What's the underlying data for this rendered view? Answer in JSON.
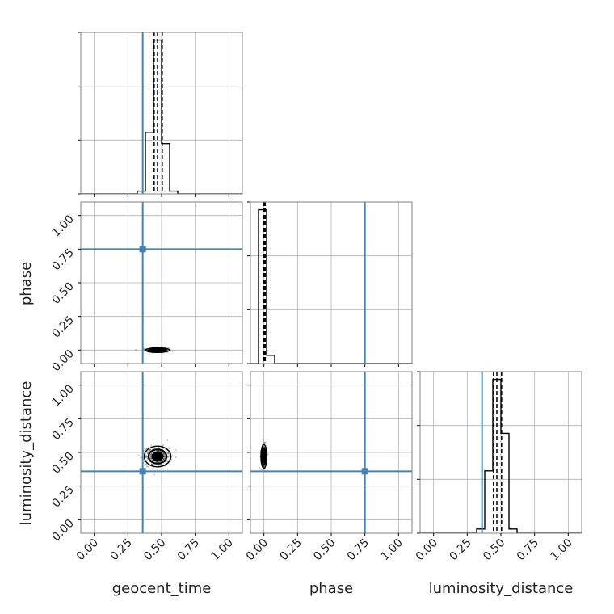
{
  "chart_data": {
    "type": "corner",
    "parameters": [
      "geocent_time",
      "phase",
      "luminosity_distance"
    ],
    "axis_labels": {
      "diag_x": [
        "geocent_time",
        "phase",
        "luminosity_distance"
      ],
      "left_y": [
        "phase",
        "luminosity_distance"
      ]
    },
    "range": [
      -0.1,
      1.1
    ],
    "ticks": [
      0.0,
      0.25,
      0.5,
      0.75,
      1.0
    ],
    "tick_labels": [
      "0.00",
      "0.25",
      "0.50",
      "0.75",
      "1.00"
    ],
    "grid": true,
    "truths": {
      "geocent_time": 0.36,
      "phase": 0.75,
      "luminosity_distance": 0.36
    },
    "truth_color": "#4682b4",
    "histograms": {
      "bin_edges": [
        -0.1,
        -0.04,
        0.02,
        0.08,
        0.14,
        0.2,
        0.26,
        0.32,
        0.38,
        0.44,
        0.5,
        0.56,
        0.62,
        0.68,
        0.74,
        0.8,
        0.86,
        0.92,
        0.98,
        1.04,
        1.1
      ],
      "geocent_time": [
        0,
        0,
        0,
        0,
        0,
        0,
        0,
        1,
        22,
        55,
        18,
        1,
        0,
        0,
        0,
        0,
        0,
        0,
        0,
        0
      ],
      "phase": [
        0,
        56,
        3,
        0,
        0,
        0,
        0,
        0,
        0,
        0,
        0,
        0,
        0,
        0,
        0,
        0,
        0,
        0,
        0,
        0
      ],
      "luminosity_distance": [
        0,
        0,
        0,
        0,
        0,
        0,
        0,
        1,
        15,
        37,
        24,
        1,
        0,
        0,
        0,
        0,
        0,
        0,
        0,
        0
      ]
    },
    "quantiles": {
      "geocent_time": [
        0.445,
        0.47,
        0.505
      ],
      "phase": [
        0.0,
        0.005,
        0.01
      ],
      "luminosity_distance": [
        0.445,
        0.47,
        0.505
      ]
    },
    "scatter_2d": [
      {
        "x_param": "geocent_time",
        "y_param": "phase",
        "center": [
          0.47,
          0.0
        ],
        "spread": [
          0.04,
          0.008
        ],
        "contour_color": "#000000"
      },
      {
        "x_param": "geocent_time",
        "y_param": "luminosity_distance",
        "center": [
          0.47,
          0.47
        ],
        "spread": [
          0.045,
          0.035
        ],
        "contour_color": "#000000"
      },
      {
        "x_param": "phase",
        "y_param": "luminosity_distance",
        "center": [
          0.0,
          0.47
        ],
        "spread": [
          0.01,
          0.04
        ],
        "contour_color": "#000000"
      }
    ]
  }
}
